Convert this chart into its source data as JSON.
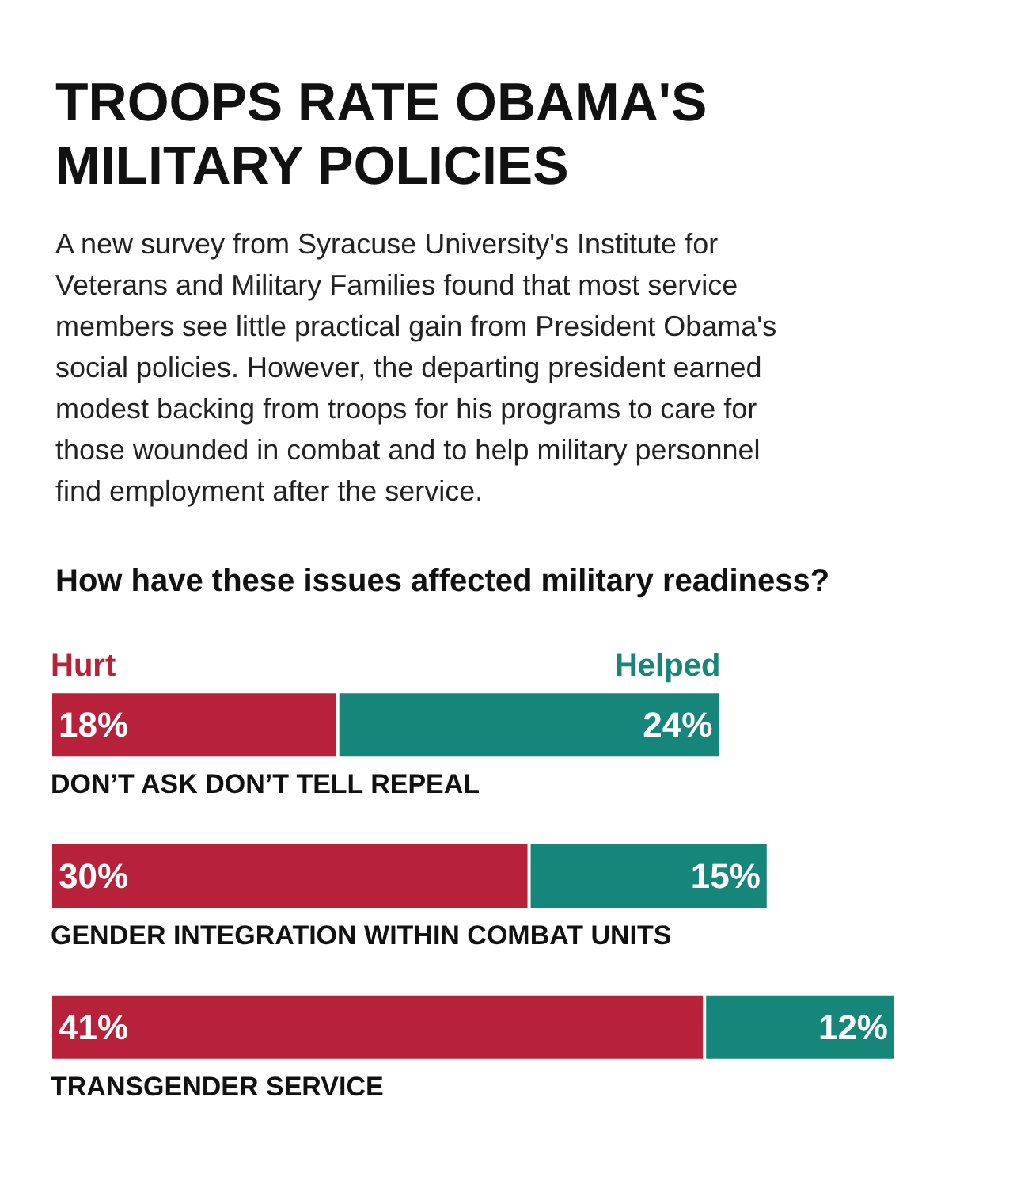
{
  "chart_data": {
    "type": "bar",
    "orientation": "horizontal",
    "stacked": true,
    "title": "TROOPS RATE OBAMA'S MILITARY POLICIES",
    "subtitle": "A new survey from Syracuse University's Institute for Veterans and Military Families found that most service members see little practical gain from President Obama's social policies. However, the departing president earned modest backing from troops for his programs to care for those wounded in combat and to help military personnel find employment after the service.",
    "annotations": [
      "How have these issues affected military readiness?"
    ],
    "categories": [
      "DON’T ASK DON’T TELL REPEAL",
      "GENDER INTEGRATION WITHIN COMBAT UNITS",
      "TRANSGENDER SERVICE"
    ],
    "series": [
      {
        "name": "Hurt",
        "color": "#b72139",
        "values": [
          18,
          30,
          41
        ],
        "value_labels": [
          "18%",
          "30%",
          "41%"
        ]
      },
      {
        "name": "Helped",
        "color": "#16867b",
        "values": [
          24,
          15,
          12
        ],
        "value_labels": [
          "24%",
          "15%",
          "12%"
        ]
      }
    ],
    "legend": "top left"
  }
}
